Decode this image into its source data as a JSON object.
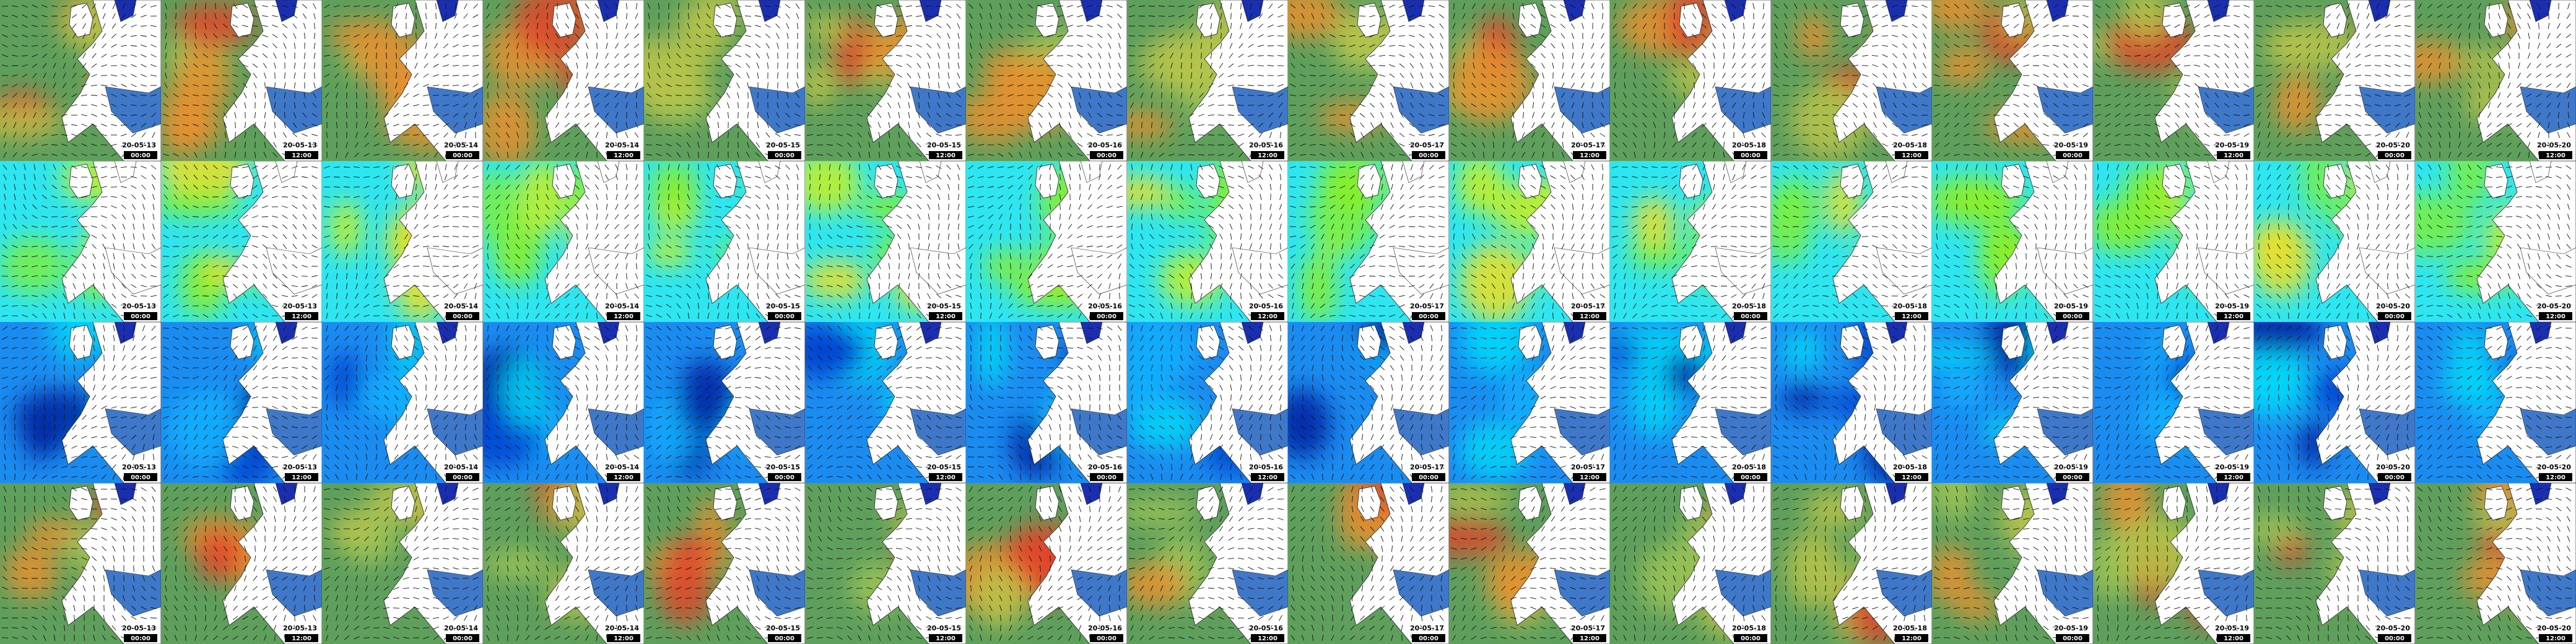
{
  "rows": [
    {
      "tiles": [
        {
          "date": "20-05-13",
          "time": "00:00"
        },
        {
          "date": "20-05-13",
          "time": "12:00"
        },
        {
          "date": "20-05-14",
          "time": "00:00"
        },
        {
          "date": "20-05-14",
          "time": "12:00"
        },
        {
          "date": "20-05-15",
          "time": "00:00"
        },
        {
          "date": "20-05-15",
          "time": "12:00"
        },
        {
          "date": "20-05-16",
          "time": "00:00"
        },
        {
          "date": "20-05-16",
          "time": "12:00"
        },
        {
          "date": "20-05-17",
          "time": "00:00"
        },
        {
          "date": "20-05-17",
          "time": "12:00"
        },
        {
          "date": "20-05-18",
          "time": "00:00"
        },
        {
          "date": "20-05-18",
          "time": "12:00"
        },
        {
          "date": "20-05-19",
          "time": "00:00"
        },
        {
          "date": "20-05-19",
          "time": "12:00"
        },
        {
          "date": "20-05-20",
          "time": "00:00"
        },
        {
          "date": "20-05-20",
          "time": "12:00"
        }
      ]
    },
    {
      "tiles": [
        {
          "date": "20-05-13",
          "time": "00:00"
        },
        {
          "date": "20-05-13",
          "time": "12:00"
        },
        {
          "date": "20-05-14",
          "time": "00:00"
        },
        {
          "date": "20-05-14",
          "time": "12:00"
        },
        {
          "date": "20-05-15",
          "time": "00:00"
        },
        {
          "date": "20-05-15",
          "time": "12:00"
        },
        {
          "date": "20-05-16",
          "time": "00:00"
        },
        {
          "date": "20-05-16",
          "time": "12:00"
        },
        {
          "date": "20-05-17",
          "time": "00:00"
        },
        {
          "date": "20-05-17",
          "time": "12:00"
        },
        {
          "date": "20-05-18",
          "time": "00:00"
        },
        {
          "date": "20-05-18",
          "time": "12:00"
        },
        {
          "date": "20-05-19",
          "time": "00:00"
        },
        {
          "date": "20-05-19",
          "time": "12:00"
        },
        {
          "date": "20-05-20",
          "time": "00:00"
        },
        {
          "date": "20-05-20",
          "time": "12:00"
        }
      ]
    },
    {
      "tiles": [
        {
          "date": "20-05-13",
          "time": "00:00"
        },
        {
          "date": "20-05-13",
          "time": "12:00"
        },
        {
          "date": "20-05-14",
          "time": "00:00"
        },
        {
          "date": "20-05-14",
          "time": "12:00"
        },
        {
          "date": "20-05-15",
          "time": "00:00"
        },
        {
          "date": "20-05-15",
          "time": "12:00"
        },
        {
          "date": "20-05-16",
          "time": "00:00"
        },
        {
          "date": "20-05-16",
          "time": "12:00"
        },
        {
          "date": "20-05-17",
          "time": "00:00"
        },
        {
          "date": "20-05-17",
          "time": "12:00"
        },
        {
          "date": "20-05-18",
          "time": "00:00"
        },
        {
          "date": "20-05-18",
          "time": "12:00"
        },
        {
          "date": "20-05-19",
          "time": "00:00"
        },
        {
          "date": "20-05-19",
          "time": "12:00"
        },
        {
          "date": "20-05-20",
          "time": "00:00"
        },
        {
          "date": "20-05-20",
          "time": "12:00"
        }
      ]
    },
    {
      "tiles": [
        {
          "date": "20-05-13",
          "time": "00:00"
        },
        {
          "date": "20-05-13",
          "time": "12:00"
        },
        {
          "date": "20-05-14",
          "time": "00:00"
        },
        {
          "date": "20-05-14",
          "time": "12:00"
        },
        {
          "date": "20-05-15",
          "time": "00:00"
        },
        {
          "date": "20-05-15",
          "time": "12:00"
        },
        {
          "date": "20-05-16",
          "time": "00:00"
        },
        {
          "date": "20-05-16",
          "time": "12:00"
        },
        {
          "date": "20-05-17",
          "time": "00:00"
        },
        {
          "date": "20-05-17",
          "time": "12:00"
        },
        {
          "date": "20-05-18",
          "time": "00:00"
        },
        {
          "date": "20-05-18",
          "time": "12:00"
        },
        {
          "date": "20-05-19",
          "time": "00:00"
        },
        {
          "date": "20-05-19",
          "time": "12:00"
        },
        {
          "date": "20-05-20",
          "time": "00:00"
        },
        {
          "date": "20-05-20",
          "time": "12:00"
        }
      ]
    }
  ]
}
